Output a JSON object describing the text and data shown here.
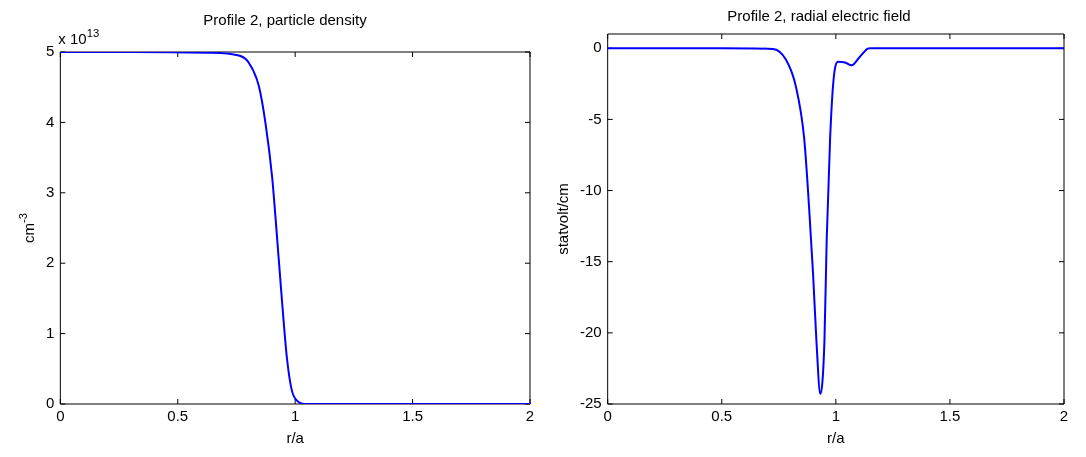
{
  "chart_data": [
    {
      "type": "line",
      "title": "Profile 2, particle density",
      "xlabel": "r/a",
      "ylabel": "cm$^{-3}$",
      "annotations": [
        "x 10$^{13}$"
      ],
      "grid": false,
      "legend": false,
      "marker": "none",
      "line_style": "solid",
      "xlim": [
        0,
        2
      ],
      "xticks": [
        0,
        0.5,
        1,
        1.5,
        2
      ],
      "ylim": [
        0,
        5
      ],
      "yticks": [
        0,
        1,
        2,
        3,
        4,
        5
      ],
      "series": [
        {
          "color": "#0000ff",
          "x": [
            0,
            0.3,
            0.63,
            0.76,
            0.8,
            0.845,
            0.874,
            0.902,
            0.923,
            0.944,
            0.965,
            0.986,
            1.014,
            1.04,
            1.5,
            2
          ],
          "values": [
            5,
            5,
            4.99,
            4.95,
            4.86,
            4.52,
            3.98,
            3.22,
            2.36,
            1.46,
            0.65,
            0.19,
            0.03,
            0,
            0,
            0
          ]
        }
      ]
    },
    {
      "type": "line",
      "title": "Profile 2, radial electric field",
      "xlabel": "r/a",
      "ylabel": "statvolt/cm",
      "grid": false,
      "legend": false,
      "marker": "none",
      "line_style": "solid",
      "xlim": [
        0,
        2
      ],
      "xticks": [
        0,
        0.5,
        1,
        1.5,
        2
      ],
      "ylim": [
        -25,
        1
      ],
      "yticks": [
        -25,
        -20,
        -15,
        -10,
        -5,
        0
      ],
      "series": [
        {
          "color": "#0000ff",
          "x": [
            0,
            0.5,
            0.724,
            0.781,
            0.825,
            0.861,
            0.882,
            0.9,
            0.915,
            0.932,
            0.95,
            0.96,
            0.975,
            0.99,
            1.01,
            1.04,
            1.07,
            1.1,
            1.14,
            1.15,
            1.5,
            2
          ],
          "values": [
            0,
            0,
            -0.05,
            -0.8,
            -2.7,
            -6.3,
            -11,
            -15.8,
            -20.6,
            -24.3,
            -20.6,
            -13.4,
            -6.3,
            -2.2,
            -0.95,
            -1,
            -1.2,
            -0.7,
            -0.03,
            0,
            0,
            0
          ]
        }
      ]
    }
  ]
}
